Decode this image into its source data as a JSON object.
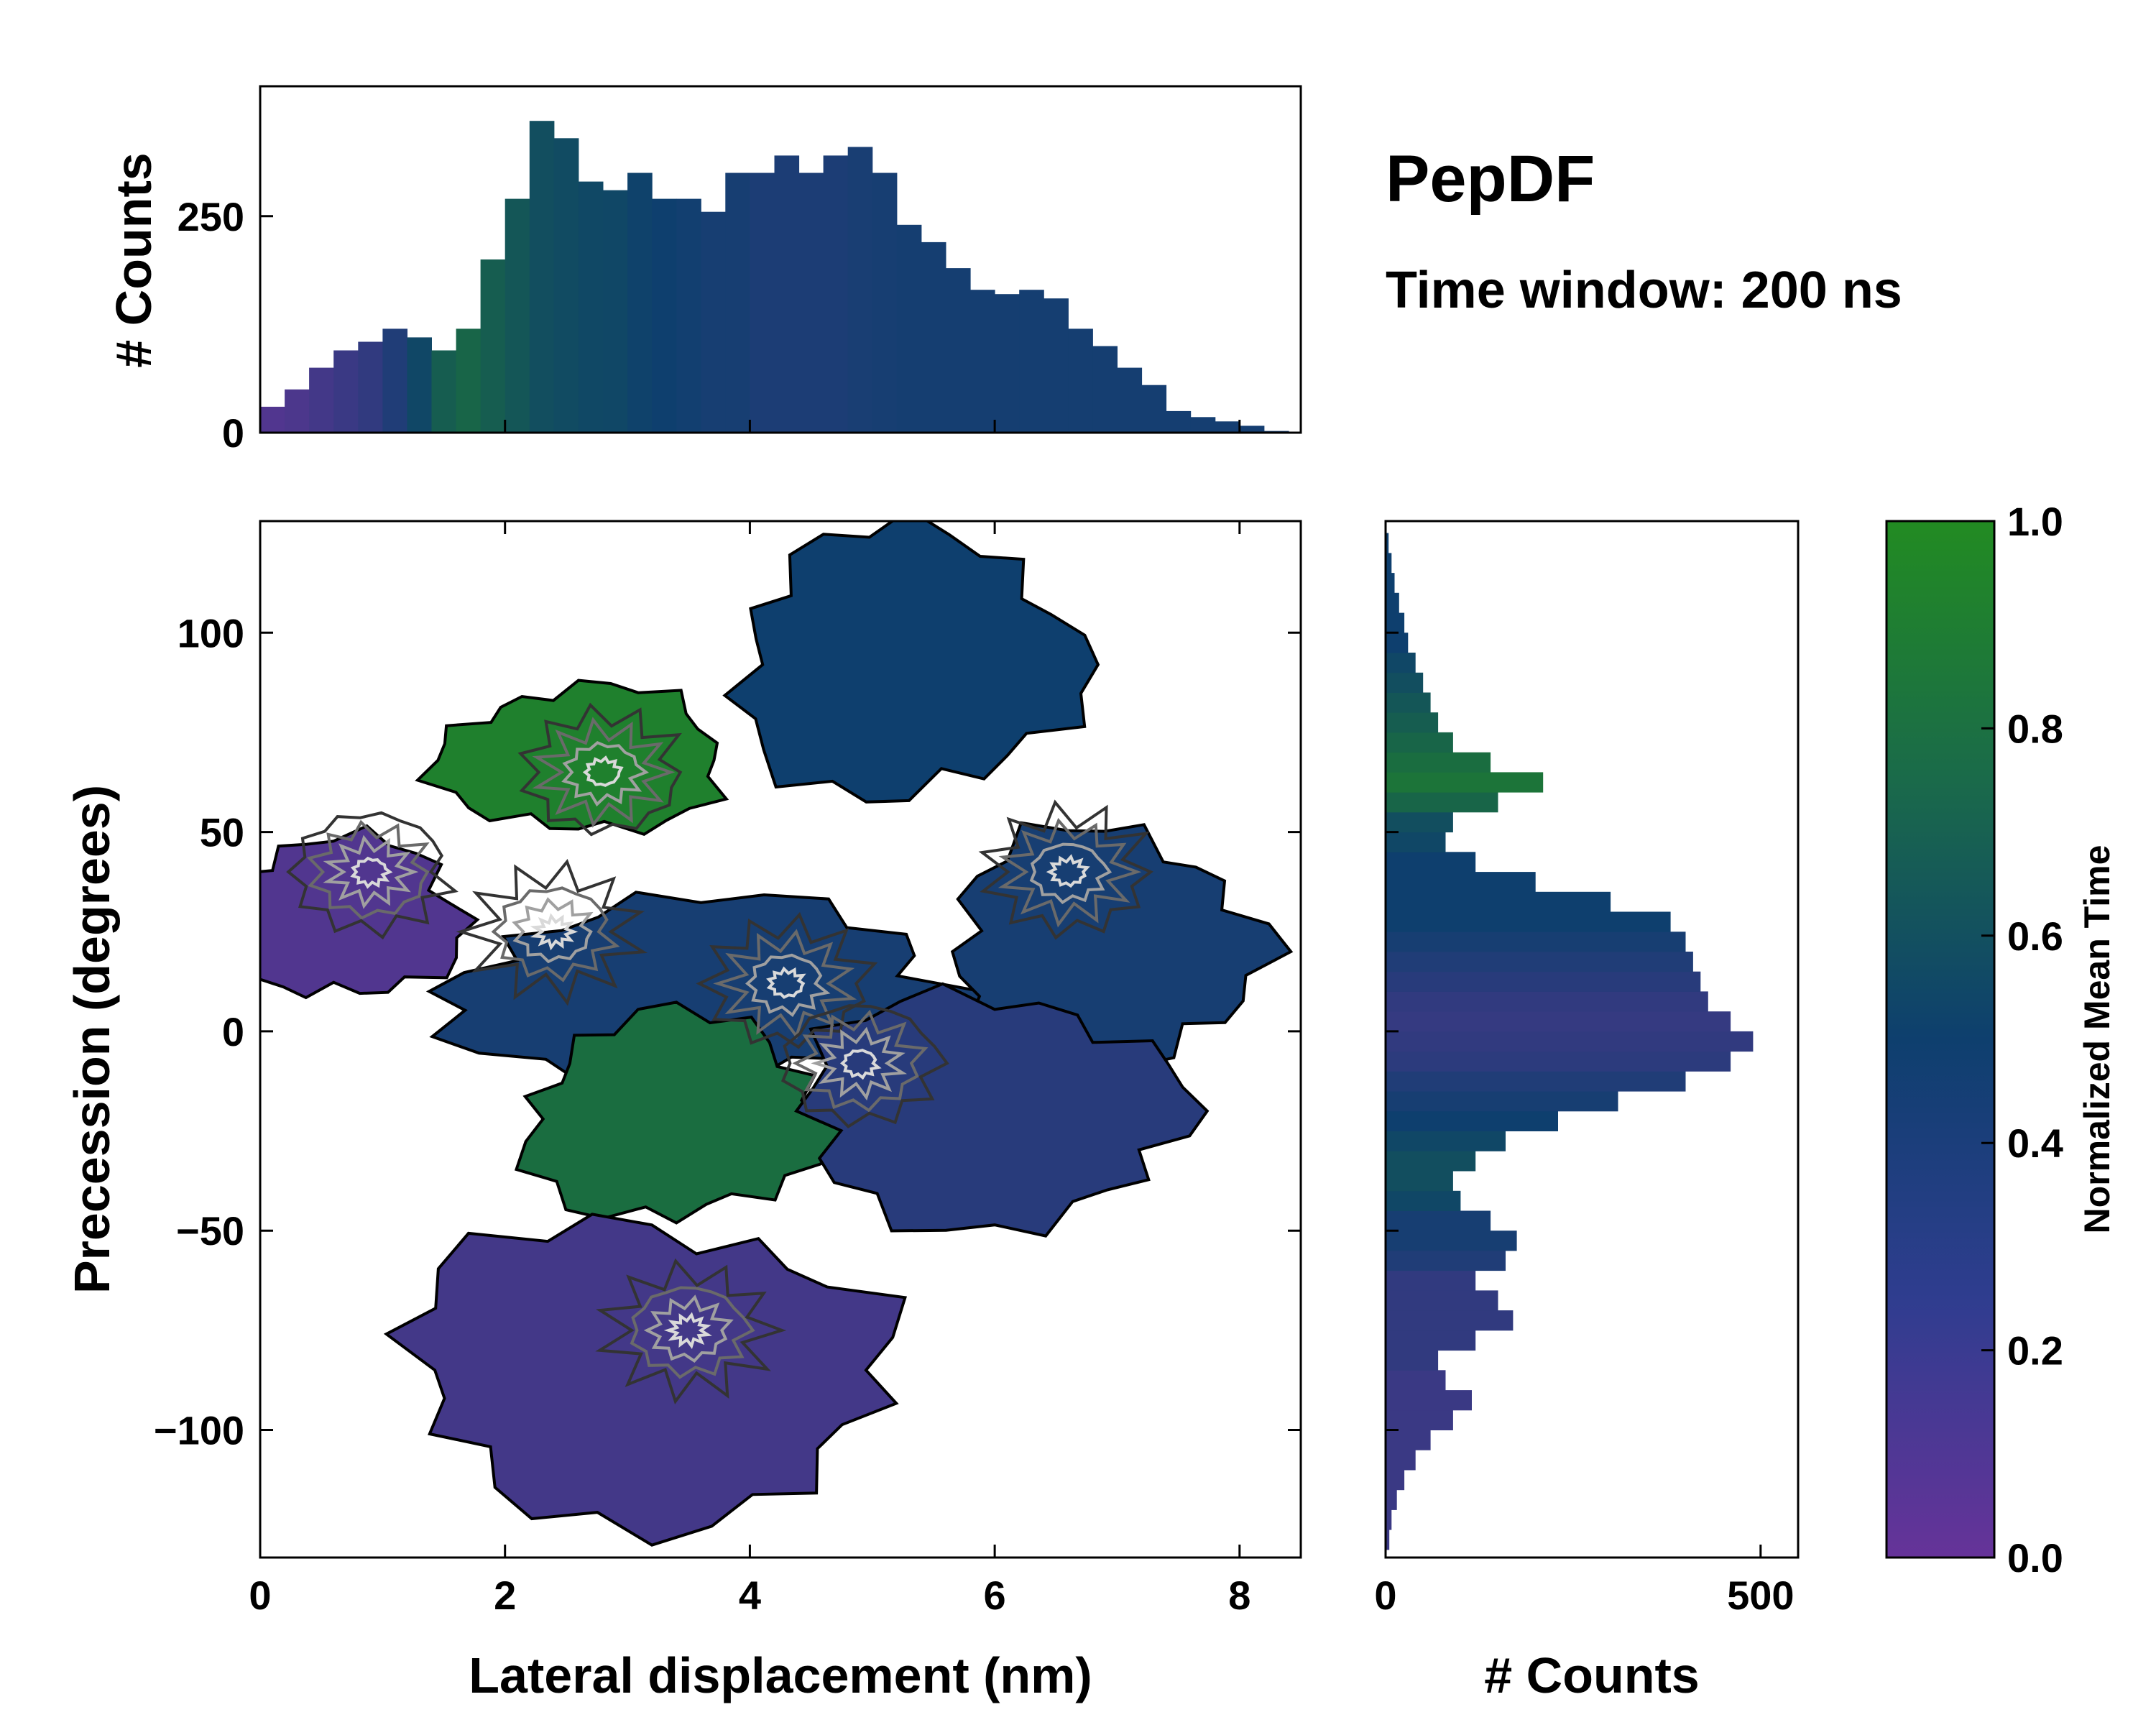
{
  "title": "PepDF",
  "subtitle": "Time window: 200 ns",
  "colors": {
    "low": "#663399",
    "mid": "#0e3f6e",
    "high": "#228b22",
    "frame": "#000000"
  },
  "chart_data": [
    {
      "id": "main",
      "type": "heatmap",
      "xlabel": "Lateral displacement (nm)",
      "ylabel": "Precession (degrees)",
      "xlim": [
        0,
        8.5
      ],
      "ylim": [
        -132,
        128
      ],
      "xticks": [
        0,
        2,
        4,
        6,
        8
      ],
      "yticks": [
        -100,
        -50,
        0,
        50,
        100
      ],
      "xtick_labels": [
        "0",
        "2",
        "4",
        "6",
        "8"
      ],
      "ytick_labels": [
        "−100",
        "−50",
        "0",
        "50",
        "100"
      ],
      "colormap": [
        "#663399",
        "#0e3f6e",
        "#228b22"
      ],
      "regions": [
        {
          "name": "upper-left green lobe",
          "x_center": 2.6,
          "y_center": 68,
          "mean_time": 0.93
        },
        {
          "name": "left purple lobe",
          "x_center": 0.6,
          "y_center": 28,
          "mean_time": 0.12
        },
        {
          "name": "central mixed band",
          "x_center": 3.6,
          "y_center": 10,
          "mean_time": 0.45
        },
        {
          "name": "central green pocket",
          "x_center": 3.4,
          "y_center": -22,
          "mean_time": 0.8
        },
        {
          "name": "upper-right blue lobe",
          "x_center": 5.3,
          "y_center": 92,
          "mean_time": 0.5
        },
        {
          "name": "right blue lobe",
          "x_center": 6.9,
          "y_center": 20,
          "mean_time": 0.45
        },
        {
          "name": "right-center blue",
          "x_center": 6.0,
          "y_center": -20,
          "mean_time": 0.35
        },
        {
          "name": "lower purple lobe",
          "x_center": 3.2,
          "y_center": -85,
          "mean_time": 0.2
        }
      ],
      "density_peaks": [
        {
          "x": 2.8,
          "y": 65
        },
        {
          "x": 0.9,
          "y": 40
        },
        {
          "x": 2.4,
          "y": 25
        },
        {
          "x": 4.3,
          "y": 12
        },
        {
          "x": 4.9,
          "y": -8
        },
        {
          "x": 3.5,
          "y": -75
        },
        {
          "x": 6.6,
          "y": 40
        }
      ]
    },
    {
      "id": "top-hist",
      "type": "bar",
      "ylabel": "# Counts",
      "xlim": [
        0,
        8.5
      ],
      "ylim": [
        0,
        400
      ],
      "yticks": [
        0,
        250
      ],
      "ytick_labels": [
        "0",
        "250"
      ],
      "x_bin_centers": [
        0.1,
        0.3,
        0.5,
        0.7,
        0.9,
        1.1,
        1.3,
        1.5,
        1.7,
        1.9,
        2.1,
        2.3,
        2.5,
        2.7,
        2.9,
        3.1,
        3.3,
        3.5,
        3.7,
        3.9,
        4.1,
        4.3,
        4.5,
        4.7,
        4.9,
        5.1,
        5.3,
        5.5,
        5.7,
        5.9,
        6.1,
        6.3,
        6.5,
        6.7,
        6.9,
        7.1,
        7.3,
        7.5,
        7.7,
        7.9,
        8.1,
        8.3
      ],
      "values": [
        30,
        50,
        75,
        95,
        105,
        120,
        110,
        95,
        120,
        200,
        270,
        360,
        340,
        290,
        280,
        300,
        270,
        270,
        255,
        300,
        300,
        320,
        300,
        320,
        330,
        300,
        240,
        220,
        190,
        165,
        160,
        165,
        155,
        120,
        100,
        75,
        55,
        25,
        18,
        13,
        8,
        2
      ],
      "mean_time": [
        0.12,
        0.15,
        0.2,
        0.25,
        0.3,
        0.4,
        0.55,
        0.7,
        0.75,
        0.7,
        0.65,
        0.6,
        0.58,
        0.56,
        0.55,
        0.52,
        0.5,
        0.48,
        0.45,
        0.45,
        0.42,
        0.42,
        0.42,
        0.42,
        0.44,
        0.45,
        0.46,
        0.46,
        0.46,
        0.46,
        0.46,
        0.46,
        0.46,
        0.46,
        0.46,
        0.46,
        0.46,
        0.46,
        0.46,
        0.46,
        0.46,
        0.46
      ]
    },
    {
      "id": "right-hist",
      "type": "bar",
      "orientation": "horizontal",
      "xlabel": "# Counts",
      "xlim": [
        0,
        550
      ],
      "xticks": [
        0,
        500
      ],
      "xtick_labels": [
        "0",
        "500"
      ],
      "ylim": [
        -132,
        128
      ],
      "y_bin_centers": [
        -127.5,
        -122.5,
        -117.5,
        -112.5,
        -107.5,
        -102.5,
        -97.5,
        -92.5,
        -87.5,
        -82.5,
        -77.5,
        -72.5,
        -67.5,
        -62.5,
        -57.5,
        -52.5,
        -47.5,
        -42.5,
        -37.5,
        -32.5,
        -27.5,
        -22.5,
        -17.5,
        -12.5,
        -7.5,
        -2.5,
        2.5,
        7.5,
        12.5,
        17.5,
        22.5,
        27.5,
        32.5,
        37.5,
        42.5,
        47.5,
        52.5,
        57.5,
        62.5,
        67.5,
        72.5,
        77.5,
        82.5,
        87.5,
        92.5,
        97.5,
        102.5,
        107.5,
        112.5,
        117.5,
        122.5
      ],
      "values": [
        5,
        8,
        15,
        25,
        40,
        60,
        90,
        115,
        80,
        70,
        120,
        170,
        150,
        120,
        160,
        175,
        140,
        100,
        90,
        120,
        160,
        230,
        310,
        400,
        460,
        490,
        460,
        430,
        420,
        410,
        400,
        380,
        300,
        200,
        120,
        80,
        90,
        150,
        210,
        140,
        90,
        70,
        60,
        50,
        40,
        30,
        25,
        18,
        12,
        8,
        4
      ],
      "mean_time": [
        0.25,
        0.25,
        0.25,
        0.25,
        0.25,
        0.25,
        0.25,
        0.25,
        0.25,
        0.3,
        0.3,
        0.3,
        0.3,
        0.3,
        0.4,
        0.45,
        0.45,
        0.55,
        0.6,
        0.6,
        0.55,
        0.5,
        0.45,
        0.4,
        0.33,
        0.3,
        0.28,
        0.3,
        0.35,
        0.4,
        0.45,
        0.5,
        0.5,
        0.5,
        0.5,
        0.55,
        0.6,
        0.75,
        0.85,
        0.8,
        0.75,
        0.7,
        0.65,
        0.6,
        0.55,
        0.5,
        0.5,
        0.5,
        0.5,
        0.5,
        0.5
      ]
    },
    {
      "id": "colorbar",
      "type": "colorbar",
      "label": "Normalized Mean Time",
      "ylim": [
        0.0,
        1.0
      ],
      "ticks": [
        0.0,
        0.2,
        0.4,
        0.6,
        0.8,
        1.0
      ],
      "tick_labels": [
        "0.0",
        "0.2",
        "0.4",
        "0.6",
        "0.8",
        "1.0"
      ]
    }
  ]
}
